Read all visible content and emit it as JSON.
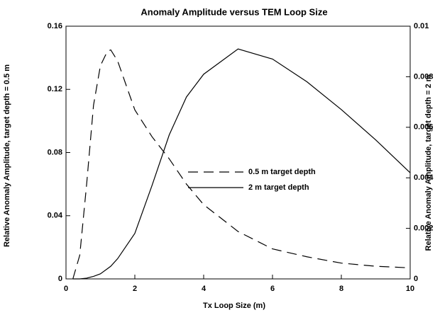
{
  "chart_data": {
    "type": "line",
    "title": "Anomaly Amplitude versus TEM Loop Size",
    "xlabel": "Tx Loop Size (m)",
    "ylabel": "Relative Anomaly Amplitude,  target depth = 0.5 m",
    "y2label": "Relative Anomaly Amplitude, target depth = 2 m",
    "x": [
      0.2,
      0.4,
      0.6,
      0.8,
      1.0,
      1.2,
      1.3,
      1.5,
      2,
      2.5,
      3,
      3.5,
      4,
      5,
      6,
      7,
      8,
      9,
      10
    ],
    "series": [
      {
        "name": "0.5 m target depth",
        "color": "#000000",
        "dash": true,
        "values": [
          0,
          0.015,
          0.06,
          0.11,
          0.135,
          0.144,
          0.145,
          0.138,
          0.107,
          0.09,
          0.076,
          0.06,
          0.047,
          0.03,
          0.019,
          0.014,
          0.01,
          0.008,
          0.007
        ]
      },
      {
        "name": "2 m target depth",
        "color": "#000000",
        "dash": false,
        "axis": "y2",
        "values": [
          0,
          0,
          3e-05,
          0.0001,
          0.0002,
          0.0004,
          0.0005,
          0.0008,
          0.0018,
          0.0037,
          0.0057,
          0.0072,
          0.0081,
          0.0091,
          0.0087,
          0.0078,
          0.0067,
          0.0055,
          0.0042
        ]
      }
    ],
    "xlim": [
      0,
      10
    ],
    "xticks": [
      0,
      2,
      4,
      6,
      8,
      10
    ],
    "ylim": [
      0,
      0.16
    ],
    "yticks": [
      0,
      0.04,
      0.08,
      0.12,
      0.16
    ],
    "y2lim": [
      0,
      0.01
    ],
    "y2ticks": [
      0,
      0.002,
      0.004,
      0.006,
      0.008,
      0.01
    ]
  }
}
